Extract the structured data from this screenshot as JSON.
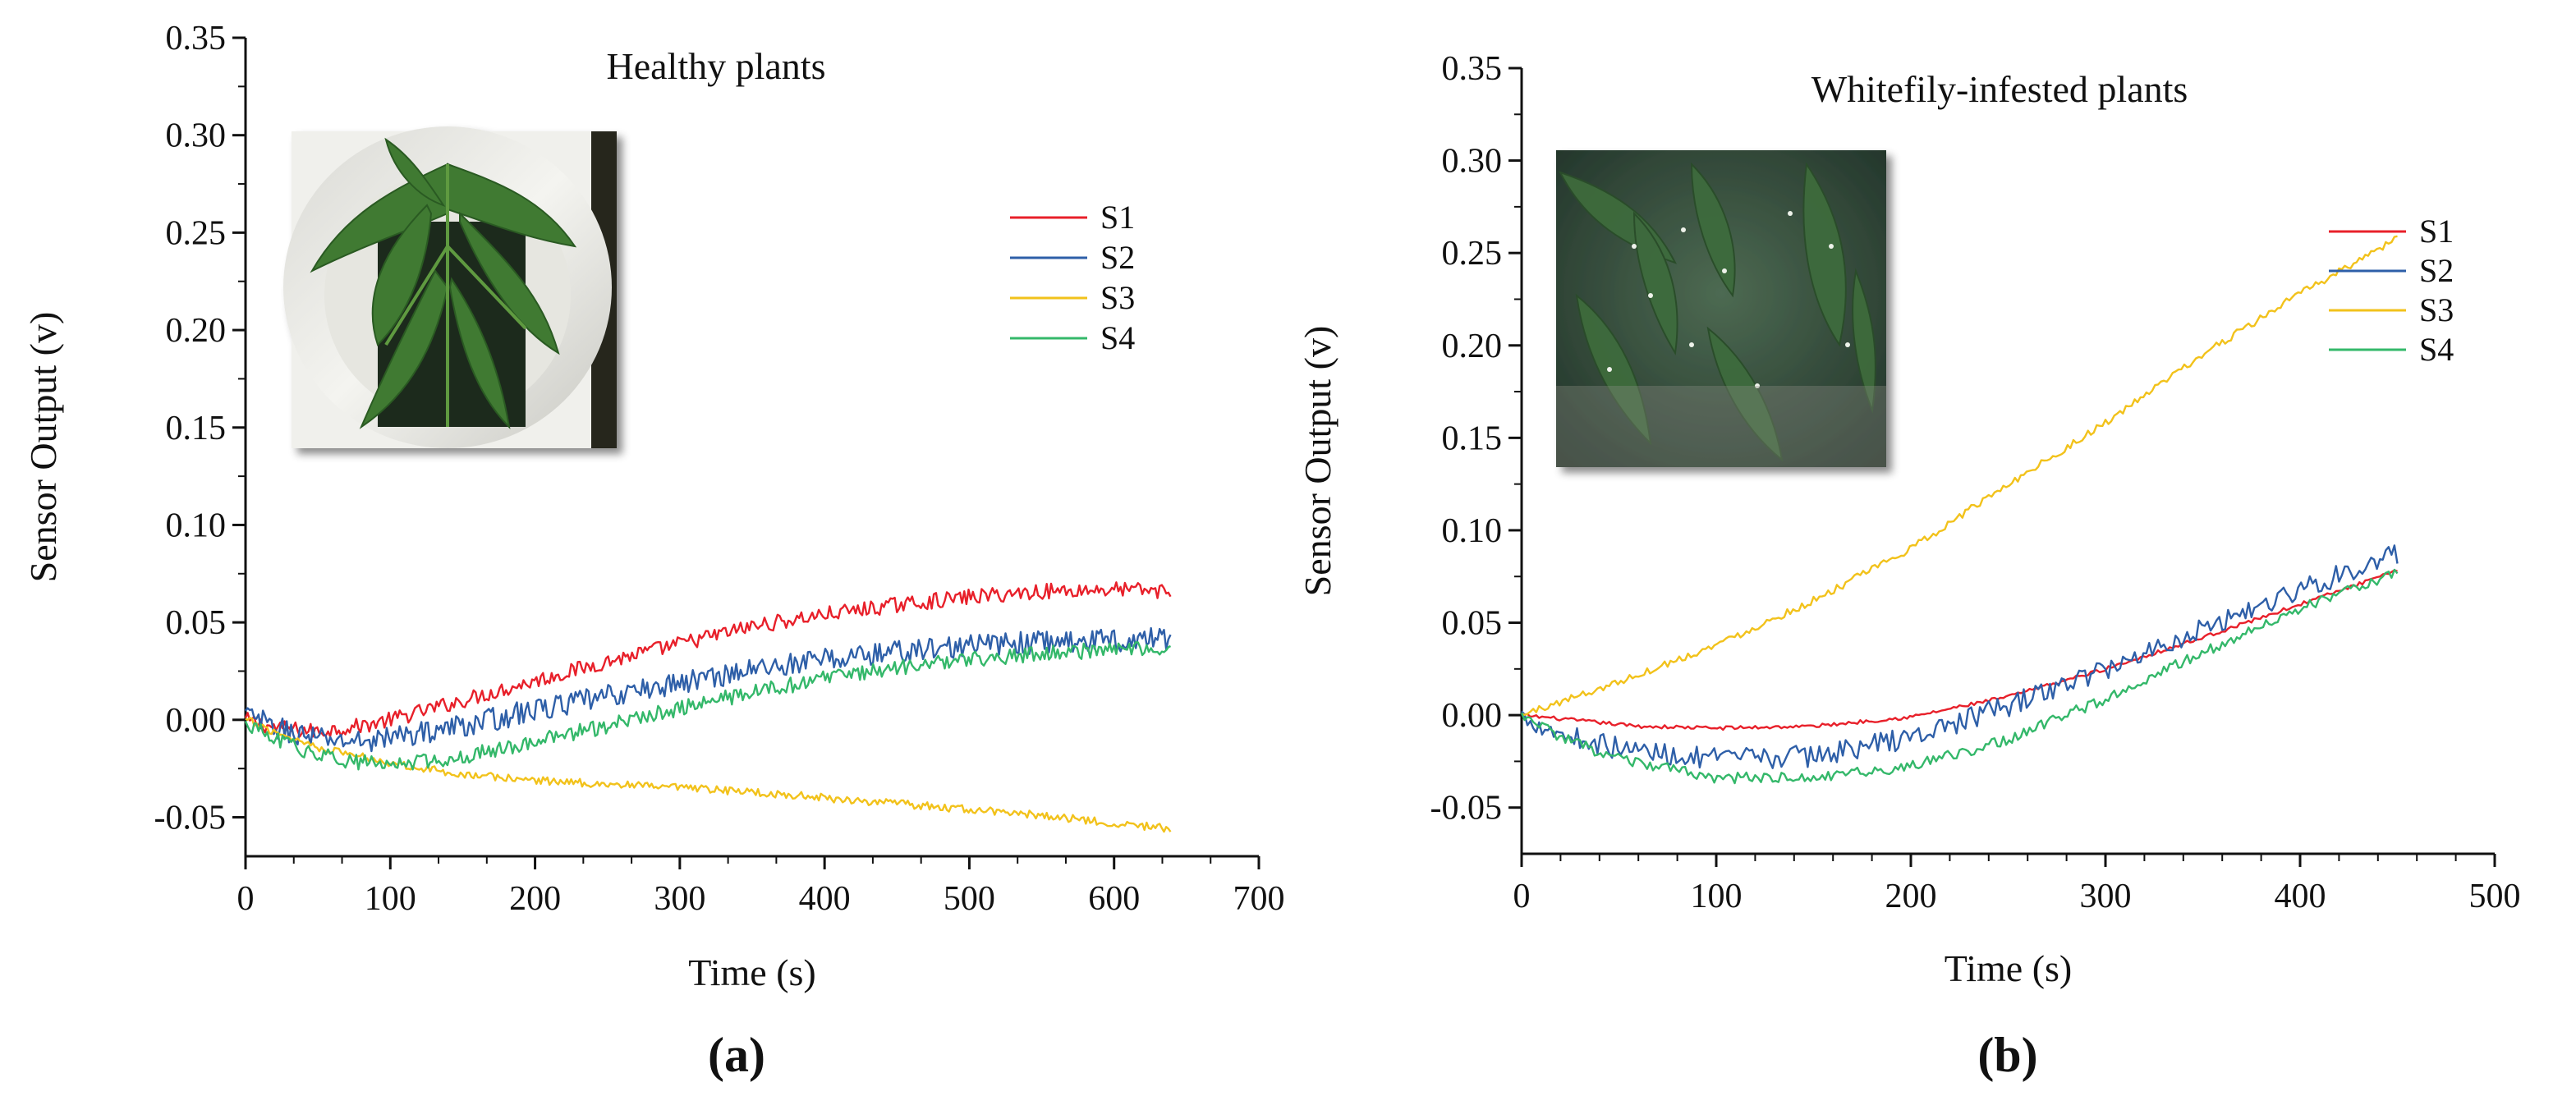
{
  "chart_data": [
    {
      "type": "line",
      "panel_label": "(a)",
      "title": "Healthy plants",
      "xlabel": "Time (s)",
      "ylabel": "Sensor Output (v)",
      "xlim": [
        0,
        700
      ],
      "ylim": [
        -0.07,
        0.35
      ],
      "x_ticks": [
        "0",
        "100",
        "200",
        "300",
        "400",
        "500",
        "600",
        "700"
      ],
      "y_ticks": [
        "0.35",
        "0.30",
        "0.25",
        "0.20",
        "0.15",
        "0.10",
        "0.05",
        "0.00",
        "-0.05"
      ],
      "grid": false,
      "legend_position": "upper-right",
      "inset_photo": "tomato-plant-in-white-container",
      "series": [
        {
          "name": "S1",
          "color": "#e8202a",
          "noise": 0.004,
          "x": [
            0,
            20,
            50,
            80,
            100,
            150,
            200,
            250,
            300,
            350,
            400,
            450,
            500,
            550,
            600,
            640
          ],
          "y": [
            0.0,
            -0.004,
            -0.006,
            -0.003,
            0.0,
            0.01,
            0.02,
            0.03,
            0.039,
            0.048,
            0.054,
            0.059,
            0.063,
            0.066,
            0.067,
            0.066
          ]
        },
        {
          "name": "S2",
          "color": "#2e5fa8",
          "noise": 0.006,
          "x": [
            0,
            20,
            50,
            80,
            100,
            150,
            200,
            250,
            300,
            350,
            400,
            450,
            500,
            550,
            600,
            640
          ],
          "y": [
            0.003,
            -0.004,
            -0.01,
            -0.011,
            -0.009,
            -0.003,
            0.005,
            0.012,
            0.019,
            0.026,
            0.031,
            0.035,
            0.038,
            0.04,
            0.041,
            0.042
          ]
        },
        {
          "name": "S3",
          "color": "#f2c21b",
          "noise": 0.002,
          "x": [
            0,
            20,
            50,
            100,
            150,
            200,
            250,
            300,
            350,
            400,
            450,
            500,
            550,
            600,
            640
          ],
          "y": [
            0.0,
            -0.006,
            -0.014,
            -0.022,
            -0.028,
            -0.031,
            -0.033,
            -0.035,
            -0.037,
            -0.04,
            -0.043,
            -0.046,
            -0.049,
            -0.053,
            -0.056
          ]
        },
        {
          "name": "S4",
          "color": "#34b86a",
          "noise": 0.004,
          "x": [
            0,
            20,
            50,
            80,
            100,
            150,
            200,
            250,
            300,
            350,
            400,
            450,
            500,
            550,
            600,
            640
          ],
          "y": [
            -0.002,
            -0.01,
            -0.018,
            -0.022,
            -0.023,
            -0.019,
            -0.011,
            -0.003,
            0.006,
            0.014,
            0.021,
            0.027,
            0.031,
            0.034,
            0.036,
            0.037
          ]
        }
      ]
    },
    {
      "type": "line",
      "panel_label": "(b)",
      "title": "Whitefily-infested plants",
      "xlabel": "Time (s)",
      "ylabel": "Sensor Output (v)",
      "xlim": [
        0,
        500
      ],
      "ylim": [
        -0.075,
        0.35
      ],
      "x_ticks": [
        "0",
        "100",
        "200",
        "300",
        "400",
        "500"
      ],
      "y_ticks": [
        "0.35",
        "0.30",
        "0.25",
        "0.20",
        "0.15",
        "0.10",
        "0.05",
        "0.00",
        "-0.05"
      ],
      "grid": false,
      "legend_position": "upper-right",
      "inset_photo": "whitefly-infested-tomato-leaves",
      "series": [
        {
          "name": "S1",
          "color": "#e8202a",
          "noise": 0.001,
          "x": [
            0,
            30,
            60,
            100,
            150,
            200,
            250,
            300,
            350,
            400,
            450
          ],
          "y": [
            0.0,
            -0.003,
            -0.006,
            -0.007,
            -0.006,
            -0.001,
            0.01,
            0.025,
            0.042,
            0.06,
            0.078
          ]
        },
        {
          "name": "S2",
          "color": "#2e5fa8",
          "noise": 0.006,
          "x": [
            0,
            20,
            50,
            100,
            150,
            200,
            250,
            300,
            350,
            400,
            450
          ],
          "y": [
            0.0,
            -0.01,
            -0.018,
            -0.024,
            -0.022,
            -0.012,
            0.005,
            0.025,
            0.047,
            0.068,
            0.087
          ]
        },
        {
          "name": "S3",
          "color": "#f2c21b",
          "noise": 0.002,
          "x": [
            0,
            50,
            100,
            150,
            200,
            250,
            300,
            350,
            400,
            450
          ],
          "y": [
            0.0,
            0.018,
            0.038,
            0.062,
            0.09,
            0.125,
            0.158,
            0.195,
            0.228,
            0.258
          ]
        },
        {
          "name": "S4",
          "color": "#34b86a",
          "noise": 0.003,
          "x": [
            0,
            20,
            50,
            100,
            150,
            200,
            250,
            300,
            350,
            400,
            450
          ],
          "y": [
            0.0,
            -0.012,
            -0.024,
            -0.034,
            -0.034,
            -0.028,
            -0.013,
            0.009,
            0.034,
            0.058,
            0.077
          ]
        }
      ]
    }
  ]
}
